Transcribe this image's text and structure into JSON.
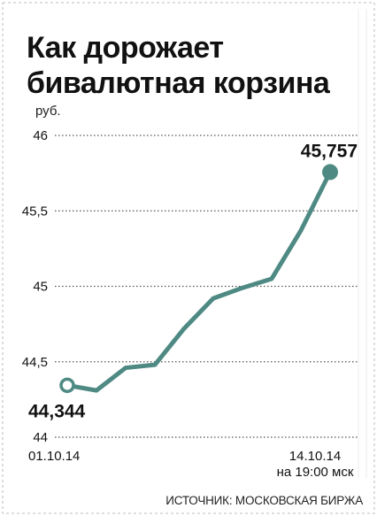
{
  "chart_data": {
    "type": "line",
    "title_lines": [
      "Как дорожает",
      "бивалютная корзина"
    ],
    "ylabel": "руб.",
    "ylim": [
      44,
      46
    ],
    "yticks": [
      "46",
      "45,5",
      "45",
      "44,5",
      "44"
    ],
    "ytick_values": [
      46,
      45.5,
      45,
      44.5,
      44
    ],
    "x_label_start": "01.10.14",
    "x_label_end_lines": [
      "14.10.14",
      "на 19:00 мск"
    ],
    "series": [
      {
        "values": [
          44.344,
          44.31,
          44.46,
          44.48,
          44.72,
          44.92,
          44.99,
          45.05,
          45.37,
          45.757
        ]
      }
    ],
    "annotations": {
      "start": "44,344",
      "end": "45,757"
    },
    "grid": "dotted horizontal",
    "colors": {
      "line": "#4e8a83",
      "grid": "#555555",
      "text": "#111111"
    },
    "source": "ИСТОЧНИК: МОСКОВСКАЯ БИРЖА"
  }
}
